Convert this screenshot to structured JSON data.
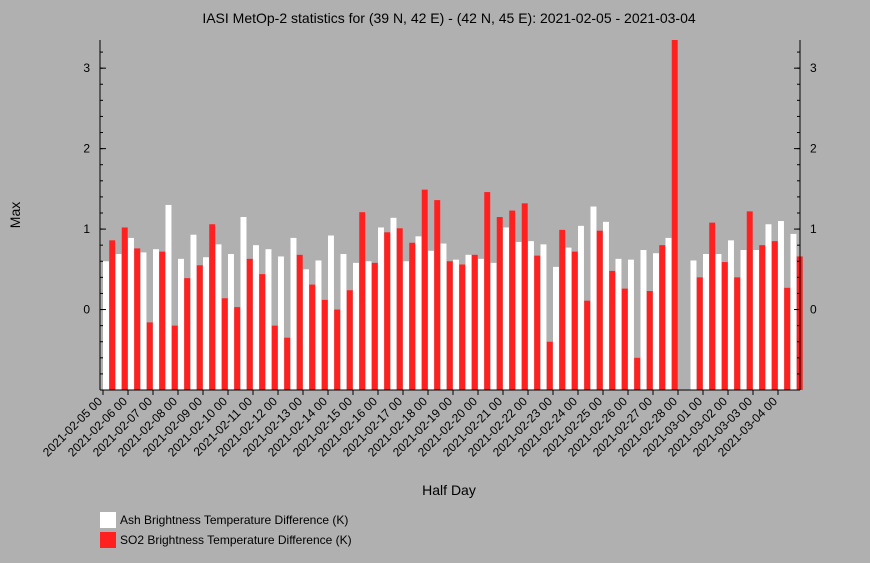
{
  "chart_data": {
    "type": "bar",
    "title": "IASI MetOp-2 statistics for (39 N, 42 E) - (42 N, 45 E): 2021-02-05 - 2021-03-04",
    "xlabel": "Half Day",
    "ylabel": "Max",
    "ylim": [
      -1,
      3.35
    ],
    "yticks": [
      0,
      1,
      2,
      3
    ],
    "grid": false,
    "legend_position": "bottom-left",
    "categories": [
      "2021-02-05 00",
      "2021-02-05 12",
      "2021-02-06 00",
      "2021-02-06 12",
      "2021-02-07 00",
      "2021-02-07 12",
      "2021-02-08 00",
      "2021-02-08 12",
      "2021-02-09 00",
      "2021-02-09 12",
      "2021-02-10 00",
      "2021-02-10 12",
      "2021-02-11 00",
      "2021-02-11 12",
      "2021-02-12 00",
      "2021-02-12 12",
      "2021-02-13 00",
      "2021-02-13 12",
      "2021-02-14 00",
      "2021-02-14 12",
      "2021-02-15 00",
      "2021-02-15 12",
      "2021-02-16 00",
      "2021-02-16 12",
      "2021-02-17 00",
      "2021-02-17 12",
      "2021-02-18 00",
      "2021-02-18 12",
      "2021-02-19 00",
      "2021-02-19 12",
      "2021-02-20 00",
      "2021-02-20 12",
      "2021-02-21 00",
      "2021-02-21 12",
      "2021-02-22 00",
      "2021-02-22 12",
      "2021-02-23 00",
      "2021-02-23 12",
      "2021-02-24 00",
      "2021-02-24 12",
      "2021-02-25 00",
      "2021-02-25 12",
      "2021-02-26 00",
      "2021-02-26 12",
      "2021-02-27 00",
      "2021-02-27 12",
      "2021-02-28 00",
      "2021-02-28 12",
      "2021-03-01 00",
      "2021-03-01 12",
      "2021-03-02 00",
      "2021-03-02 12",
      "2021-03-03 00",
      "2021-03-03 12",
      "2021-03-04 00",
      "2021-03-04 12"
    ],
    "tick_labels": [
      "2021-02-05 00",
      "2021-02-06 00",
      "2021-02-07 00",
      "2021-02-08 00",
      "2021-02-09 00",
      "2021-02-10 00",
      "2021-02-11 00",
      "2021-02-12 00",
      "2021-02-13 00",
      "2021-02-14 00",
      "2021-02-15 00",
      "2021-02-16 00",
      "2021-02-17 00",
      "2021-02-18 00",
      "2021-02-19 00",
      "2021-02-20 00",
      "2021-02-21 00",
      "2021-02-22 00",
      "2021-02-23 00",
      "2021-02-24 00",
      "2021-02-25 00",
      "2021-02-26 00",
      "2021-02-27 00",
      "2021-02-28 00",
      "2021-03-01 00",
      "2021-03-02 00",
      "2021-03-03 00",
      "2021-03-04 00"
    ],
    "series": [
      {
        "name": "Ash Brightness Temperature Difference (K)",
        "color": "#ffffff",
        "values": [
          0.6,
          0.69,
          0.89,
          0.71,
          0.75,
          1.3,
          0.63,
          0.93,
          0.65,
          0.81,
          0.69,
          1.15,
          0.8,
          0.75,
          0.66,
          0.89,
          0.5,
          0.61,
          0.92,
          0.69,
          0.58,
          0.6,
          1.02,
          1.14,
          0.6,
          0.91,
          0.73,
          0.82,
          0.62,
          0.68,
          0.63,
          0.58,
          1.02,
          0.84,
          0.85,
          0.81,
          0.53,
          0.77,
          1.04,
          1.28,
          1.09,
          0.63,
          0.62,
          0.74,
          0.7,
          0.89,
          null,
          0.61,
          0.69,
          0.69,
          0.86,
          0.74,
          0.74,
          1.06,
          1.1,
          0.94
        ]
      },
      {
        "name": "SO2 Brightness Temperature Difference (K)",
        "color": "#ff2020",
        "values": [
          0.86,
          1.02,
          0.76,
          -0.16,
          0.72,
          -0.2,
          0.39,
          0.55,
          1.06,
          0.14,
          0.03,
          0.63,
          0.44,
          -0.2,
          -0.35,
          0.68,
          0.31,
          0.12,
          0.0,
          0.24,
          1.21,
          0.58,
          0.96,
          1.01,
          0.83,
          1.49,
          1.36,
          0.6,
          0.56,
          0.68,
          1.46,
          1.15,
          1.23,
          1.32,
          0.67,
          -0.4,
          0.99,
          0.72,
          0.11,
          0.98,
          0.48,
          0.26,
          -0.6,
          0.23,
          0.8,
          3.35,
          null,
          0.4,
          1.08,
          0.59,
          0.4,
          1.22,
          0.8,
          0.85,
          0.27,
          0.66
        ]
      }
    ]
  }
}
